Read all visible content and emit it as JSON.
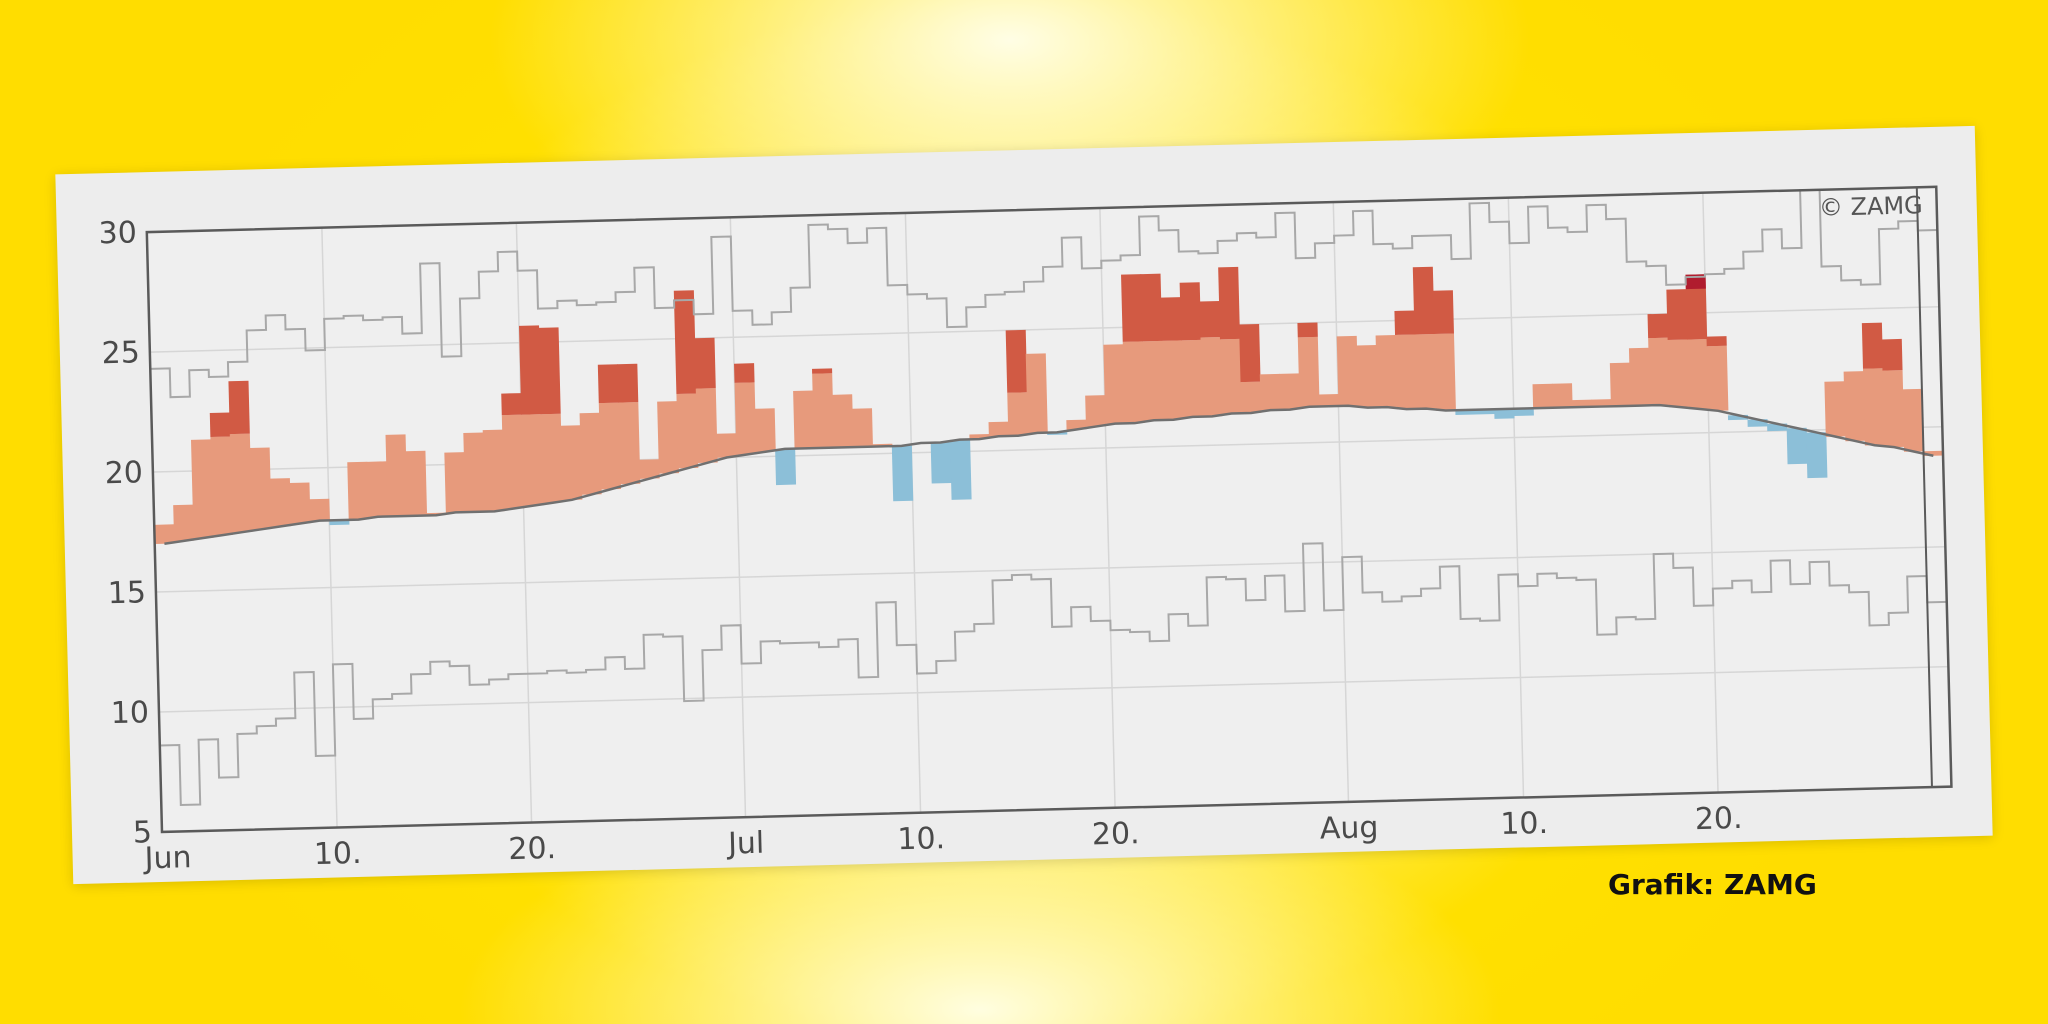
{
  "chart_data": {
    "type": "area",
    "credit_inside": "© ZAMG",
    "x_tick_labels": [
      "Jun",
      "10.",
      "20.",
      "Jul",
      "10.",
      "20.",
      "Aug",
      "10.",
      "20."
    ],
    "x_tick_days": [
      0,
      9,
      19,
      30,
      39,
      49,
      61,
      70,
      80
    ],
    "ylim": [
      5,
      30
    ],
    "y_ticks": [
      5,
      10,
      15,
      20,
      25,
      30
    ],
    "days_shown": 92,
    "grid": true,
    "colors": {
      "above_normal": "#e79a7c",
      "above_max_range": "#d15a44",
      "extreme": "#b01c2e",
      "below_normal": "#8cbfd8",
      "lines": "#a8a8a8",
      "normal_line": "#707070"
    },
    "series": [
      {
        "name": "normal",
        "values": [
          17.0,
          17.1,
          17.2,
          17.3,
          17.4,
          17.5,
          17.6,
          17.7,
          17.8,
          17.8,
          17.8,
          17.9,
          17.9,
          17.9,
          17.9,
          18.0,
          18.0,
          18.0,
          18.1,
          18.2,
          18.3,
          18.4,
          18.6,
          18.8,
          19.0,
          19.2,
          19.4,
          19.6,
          19.8,
          20.0,
          20.1,
          20.2,
          20.3,
          20.3,
          20.3,
          20.3,
          20.3,
          20.3,
          20.3,
          20.4,
          20.4,
          20.5,
          20.5,
          20.6,
          20.6,
          20.7,
          20.7,
          20.8,
          20.9,
          21.0,
          21.0,
          21.1,
          21.1,
          21.2,
          21.2,
          21.3,
          21.3,
          21.4,
          21.4,
          21.5,
          21.5,
          21.5,
          21.4,
          21.4,
          21.3,
          21.3,
          21.2,
          21.2,
          21.2,
          21.2,
          21.2,
          21.2,
          21.2,
          21.2,
          21.2,
          21.2,
          21.2,
          21.2,
          21.1,
          21.0,
          20.9,
          20.7,
          20.5,
          20.3,
          20.1,
          19.9,
          19.7,
          19.5,
          19.3,
          19.2,
          19.0,
          18.8
        ]
      },
      {
        "name": "mean",
        "values": [
          17.8,
          18.6,
          21.3,
          21.4,
          21.5,
          20.9,
          19.6,
          19.4,
          18.7,
          17.6,
          20.2,
          20.2,
          21.3,
          20.6,
          18.0,
          20.5,
          21.3,
          21.4,
          22.0,
          22.0,
          22.0,
          21.5,
          22.0,
          22.4,
          22.4,
          20.0,
          22.4,
          22.7,
          22.9,
          21.0,
          23.1,
          22.0,
          18.8,
          22.7,
          23.4,
          22.5,
          21.9,
          20.4,
          18.0,
          20.4,
          18.7,
          18.0,
          20.7,
          21.2,
          22.4,
          24.0,
          20.6,
          21.2,
          22.2,
          24.3,
          24.4,
          24.4,
          24.4,
          24.4,
          24.5,
          24.4,
          22.6,
          22.9,
          22.9,
          24.4,
          22.0,
          24.4,
          24.0,
          24.4,
          24.4,
          24.4,
          24.4,
          21.0,
          21.0,
          20.8,
          20.9,
          22.2,
          22.2,
          21.5,
          21.5,
          23.0,
          23.6,
          24.0,
          23.9,
          23.9,
          23.6,
          20.5,
          20.2,
          20.0,
          18.6,
          18.0,
          22.0,
          22.4,
          22.5,
          22.4,
          21.6,
          19.0
        ],
        "exceedance": [
          17.8,
          18.6,
          21.3,
          22.4,
          23.7,
          20.9,
          19.6,
          19.4,
          18.7,
          17.6,
          20.2,
          20.2,
          21.3,
          20.6,
          18.0,
          20.5,
          21.3,
          21.4,
          22.9,
          25.7,
          25.6,
          21.5,
          22.0,
          24.0,
          24.0,
          20.0,
          22.4,
          27.0,
          25.0,
          21.0,
          23.9,
          22.0,
          18.8,
          22.7,
          23.6,
          22.5,
          21.9,
          20.4,
          18.0,
          20.4,
          18.7,
          18.0,
          20.7,
          21.2,
          25.0,
          24.0,
          20.6,
          21.2,
          22.2,
          24.3,
          27.2,
          27.2,
          26.2,
          26.8,
          26.0,
          27.4,
          25.0,
          22.9,
          22.9,
          25.0,
          22.0,
          24.4,
          24.0,
          24.4,
          25.4,
          27.2,
          26.2,
          21.0,
          21.0,
          20.8,
          20.9,
          22.2,
          22.2,
          21.5,
          21.5,
          23.0,
          23.6,
          25.0,
          26.0,
          26.6,
          24.0,
          20.5,
          20.2,
          20.0,
          18.6,
          18.0,
          22.0,
          22.4,
          24.4,
          23.7,
          21.6,
          19.0
        ]
      },
      {
        "name": "upper",
        "values": [
          24.3,
          23.1,
          24.2,
          23.9,
          24.5,
          25.8,
          26.4,
          25.8,
          24.9,
          26.2,
          26.3,
          26.1,
          26.2,
          25.5,
          28.4,
          24.5,
          26.9,
          28.0,
          28.8,
          28.0,
          26.4,
          26.7,
          26.5,
          26.6,
          27.0,
          28.0,
          26.3,
          26.6,
          26.0,
          29.2,
          26.1,
          25.5,
          26.0,
          27.0,
          29.6,
          29.4,
          28.8,
          29.4,
          27.0,
          26.6,
          26.4,
          25.2,
          26.0,
          26.5,
          26.6,
          27.0,
          27.6,
          28.8,
          27.5,
          27.8,
          28.0,
          29.6,
          29.0,
          28.1,
          28.0,
          28.5,
          28.8,
          28.6,
          29.6,
          27.7,
          28.3,
          28.6,
          29.6,
          28.2,
          28.0,
          28.5,
          28.5,
          27.5,
          29.8,
          29.0,
          28.1,
          29.6,
          28.7,
          28.5,
          29.6,
          29.0,
          27.2,
          27.0,
          26.2,
          26.5,
          26.6,
          26.8,
          27.5,
          28.4,
          27.6,
          30.0,
          26.8,
          26.2,
          26.0,
          28.3,
          28.6,
          28.2
        ],
        "partial_from": 91
      },
      {
        "name": "lower",
        "values": [
          8.6,
          6.1,
          8.8,
          7.2,
          9.0,
          9.3,
          9.6,
          11.5,
          8.0,
          11.8,
          9.5,
          10.3,
          10.5,
          11.3,
          11.8,
          11.6,
          10.8,
          11.0,
          11.2,
          11.2,
          11.3,
          11.2,
          11.3,
          11.8,
          11.3,
          12.7,
          12.6,
          9.9,
          12.0,
          13.0,
          11.4,
          12.3,
          12.2,
          12.2,
          12.0,
          12.3,
          10.7,
          13.8,
          12.0,
          10.8,
          11.3,
          12.5,
          12.8,
          14.6,
          14.8,
          14.6,
          12.6,
          13.4,
          12.8,
          12.4,
          12.3,
          11.9,
          13.0,
          12.5,
          14.5,
          14.4,
          13.5,
          14.5,
          13.0,
          15.8,
          13.0,
          15.2,
          13.7,
          13.3,
          13.5,
          13.8,
          14.7,
          12.5,
          12.4,
          14.3,
          13.8,
          14.3,
          14.1,
          14.0,
          11.7,
          12.4,
          12.3,
          15.0,
          14.4,
          12.8,
          13.5,
          13.8,
          13.3,
          14.6,
          13.6,
          14.5,
          13.5,
          13.2,
          11.8,
          12.3,
          13.8,
          12.7
        ],
        "partial_from": 91
      }
    ]
  },
  "page": {
    "credit": "Grafik: ZAMG"
  }
}
